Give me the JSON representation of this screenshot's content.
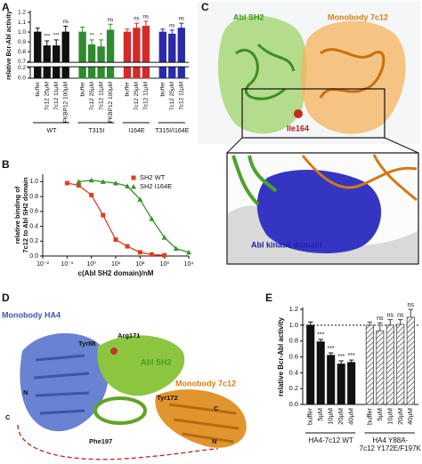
{
  "panel_labels": [
    "A",
    "B",
    "C",
    "D",
    "E"
  ],
  "chart_data": [
    {
      "type": "bar",
      "y_label": "relative Bcr-Abl activity",
      "ylim": [
        0,
        1.2
      ],
      "y_break": [
        0.2,
        0.7
      ],
      "yticks": [
        {
          "value": 0,
          "label": "0.0"
        },
        {
          "value": 0.2,
          "label": "0.2"
        },
        {
          "value": 0.7,
          "label": "0.7"
        },
        {
          "value": 0.8,
          "label": "0.8"
        },
        {
          "value": 0.9,
          "label": "0.9"
        },
        {
          "value": 1,
          "label": "1.0"
        },
        {
          "value": 1.1,
          "label": "1.1"
        },
        {
          "value": 1.2,
          "label": "1.2"
        }
      ],
      "groups": [
        {
          "label": [
            "WT"
          ],
          "color": "#111111",
          "pattern": "solid",
          "categories": [
            "buffer",
            "7c12 25µM",
            "7c12 11µM",
            "FKBP12 100µM"
          ],
          "values": [
            1.0,
            0.86,
            0.86,
            1.0
          ],
          "errors": [
            0.04,
            0.05,
            0.06,
            0.06
          ],
          "annotations": [
            null,
            "***",
            "***",
            "ns"
          ]
        },
        {
          "label": [
            "T315I"
          ],
          "color": "#2e8b2e",
          "pattern": "solid",
          "categories": [
            "buffer",
            "7c12 25µM",
            "7c12 11µM",
            "FKBP12 100µM"
          ],
          "values": [
            1.0,
            0.87,
            0.85,
            1.02
          ],
          "errors": [
            0.05,
            0.05,
            0.07,
            0.06
          ],
          "annotations": [
            null,
            "**",
            "*",
            "ns"
          ]
        },
        {
          "label": [
            "I164E"
          ],
          "color": "#d42a2a",
          "pattern": "solid",
          "categories": [
            "buffer",
            "7c12 25µM",
            "7c12 11µM"
          ],
          "values": [
            1.0,
            1.04,
            1.06
          ],
          "errors": [
            0.03,
            0.05,
            0.05
          ],
          "annotations": [
            null,
            "ns",
            "ns"
          ]
        },
        {
          "label": [
            "T315I/I164E"
          ],
          "color": "#2a2aa8",
          "pattern": "solid",
          "categories": [
            "buffer",
            "7c12 25µM",
            "7c12 11µM"
          ],
          "values": [
            1.0,
            0.98,
            1.04
          ],
          "errors": [
            0.03,
            0.04,
            0.05
          ],
          "annotations": [
            null,
            "ns",
            "ns"
          ]
        }
      ]
    },
    {
      "type": "scatter",
      "y_label": [
        "relative binding of",
        "7c12 to Abl SH2 domain"
      ],
      "x_label": "c(Abl SH2 domain)/nM",
      "x_scale": "log",
      "xlim": [
        0.01,
        10000
      ],
      "xticks": [
        {
          "value": 0.01,
          "label": "10⁻²"
        },
        {
          "value": 0.1,
          "label": "10⁻¹"
        },
        {
          "value": 1,
          "label": "10⁰"
        },
        {
          "value": 10,
          "label": "10¹"
        },
        {
          "value": 100,
          "label": "10²"
        },
        {
          "value": 1000,
          "label": "10³"
        },
        {
          "value": 10000,
          "label": "10⁴"
        }
      ],
      "ylim": [
        0,
        1.1
      ],
      "yticks": [
        {
          "value": 0,
          "label": "0.0"
        },
        {
          "value": 0.2,
          "label": "0.2"
        },
        {
          "value": 0.4,
          "label": "0.4"
        },
        {
          "value": 0.6,
          "label": "0.6"
        },
        {
          "value": 0.8,
          "label": "0.8"
        },
        {
          "value": 1,
          "label": "1.0"
        }
      ],
      "legend": "upper right",
      "series": [
        {
          "name": "SH2 WT",
          "color": "#d9421f",
          "marker": "square",
          "x": [
            0.1,
            0.3,
            1,
            3,
            10,
            30,
            100,
            300,
            1000
          ],
          "values": [
            0.98,
            0.95,
            0.82,
            0.55,
            0.22,
            0.13,
            0.05,
            0.02,
            0.01
          ]
        },
        {
          "name": "SH2 I164E",
          "color": "#3b8f2e",
          "marker": "triangle",
          "x": [
            0.3,
            1,
            3,
            10,
            30,
            100,
            300,
            1000,
            3000,
            10000
          ],
          "values": [
            1.0,
            1.02,
            1.0,
            0.98,
            0.94,
            0.76,
            0.5,
            0.25,
            0.1,
            0.05
          ]
        }
      ]
    },
    {
      "type": "bar",
      "y_label": "relative Bcr-Abl activity",
      "ylim": [
        0,
        1.2
      ],
      "ref_line": 1.0,
      "yticks": [
        {
          "value": 0,
          "label": "0.0"
        },
        {
          "value": 0.2,
          "label": "0.2"
        },
        {
          "value": 0.4,
          "label": "0.4"
        },
        {
          "value": 0.6,
          "label": "0.6"
        },
        {
          "value": 0.8,
          "label": "0.8"
        },
        {
          "value": 1,
          "label": "1.0"
        },
        {
          "value": 1.2,
          "label": "1.2"
        }
      ],
      "groups": [
        {
          "label": [
            "HA4-7c12 WT"
          ],
          "color": "#111111",
          "pattern": "solid",
          "categories": [
            "buffer",
            "5µM",
            "10µM",
            "20µM",
            "40µM"
          ],
          "values": [
            1.0,
            0.79,
            0.62,
            0.51,
            0.53
          ],
          "errors": [
            0.04,
            0.03,
            0.03,
            0.04,
            0.03
          ],
          "annotations": [
            null,
            "***",
            "***",
            "***",
            "***"
          ]
        },
        {
          "label": [
            "HA4 Y88A-",
            "7c12 Y172E/F197K"
          ],
          "color": "#444444",
          "pattern": "hatch",
          "categories": [
            "buffer",
            "5µM",
            "10µM",
            "20µM",
            "40µM"
          ],
          "values": [
            1.0,
            0.93,
            1.0,
            1.01,
            1.1
          ],
          "errors": [
            0.04,
            0.1,
            0.07,
            0.06,
            0.1
          ],
          "annotations": [
            null,
            "ns",
            "ns",
            "ns",
            "ns"
          ]
        }
      ]
    }
  ],
  "structure_c": {
    "labels": [
      "Abl SH2",
      "Monobody 7c12",
      "Ile164",
      "Abl kinase domain"
    ]
  },
  "structure_d": {
    "labels": [
      "Monobody HA4",
      "Tyr88",
      "Arg171",
      "Abl SH2",
      "Monobody 7c12",
      "Tyr172",
      "Phe197",
      "N",
      "C",
      "C",
      "N"
    ]
  }
}
